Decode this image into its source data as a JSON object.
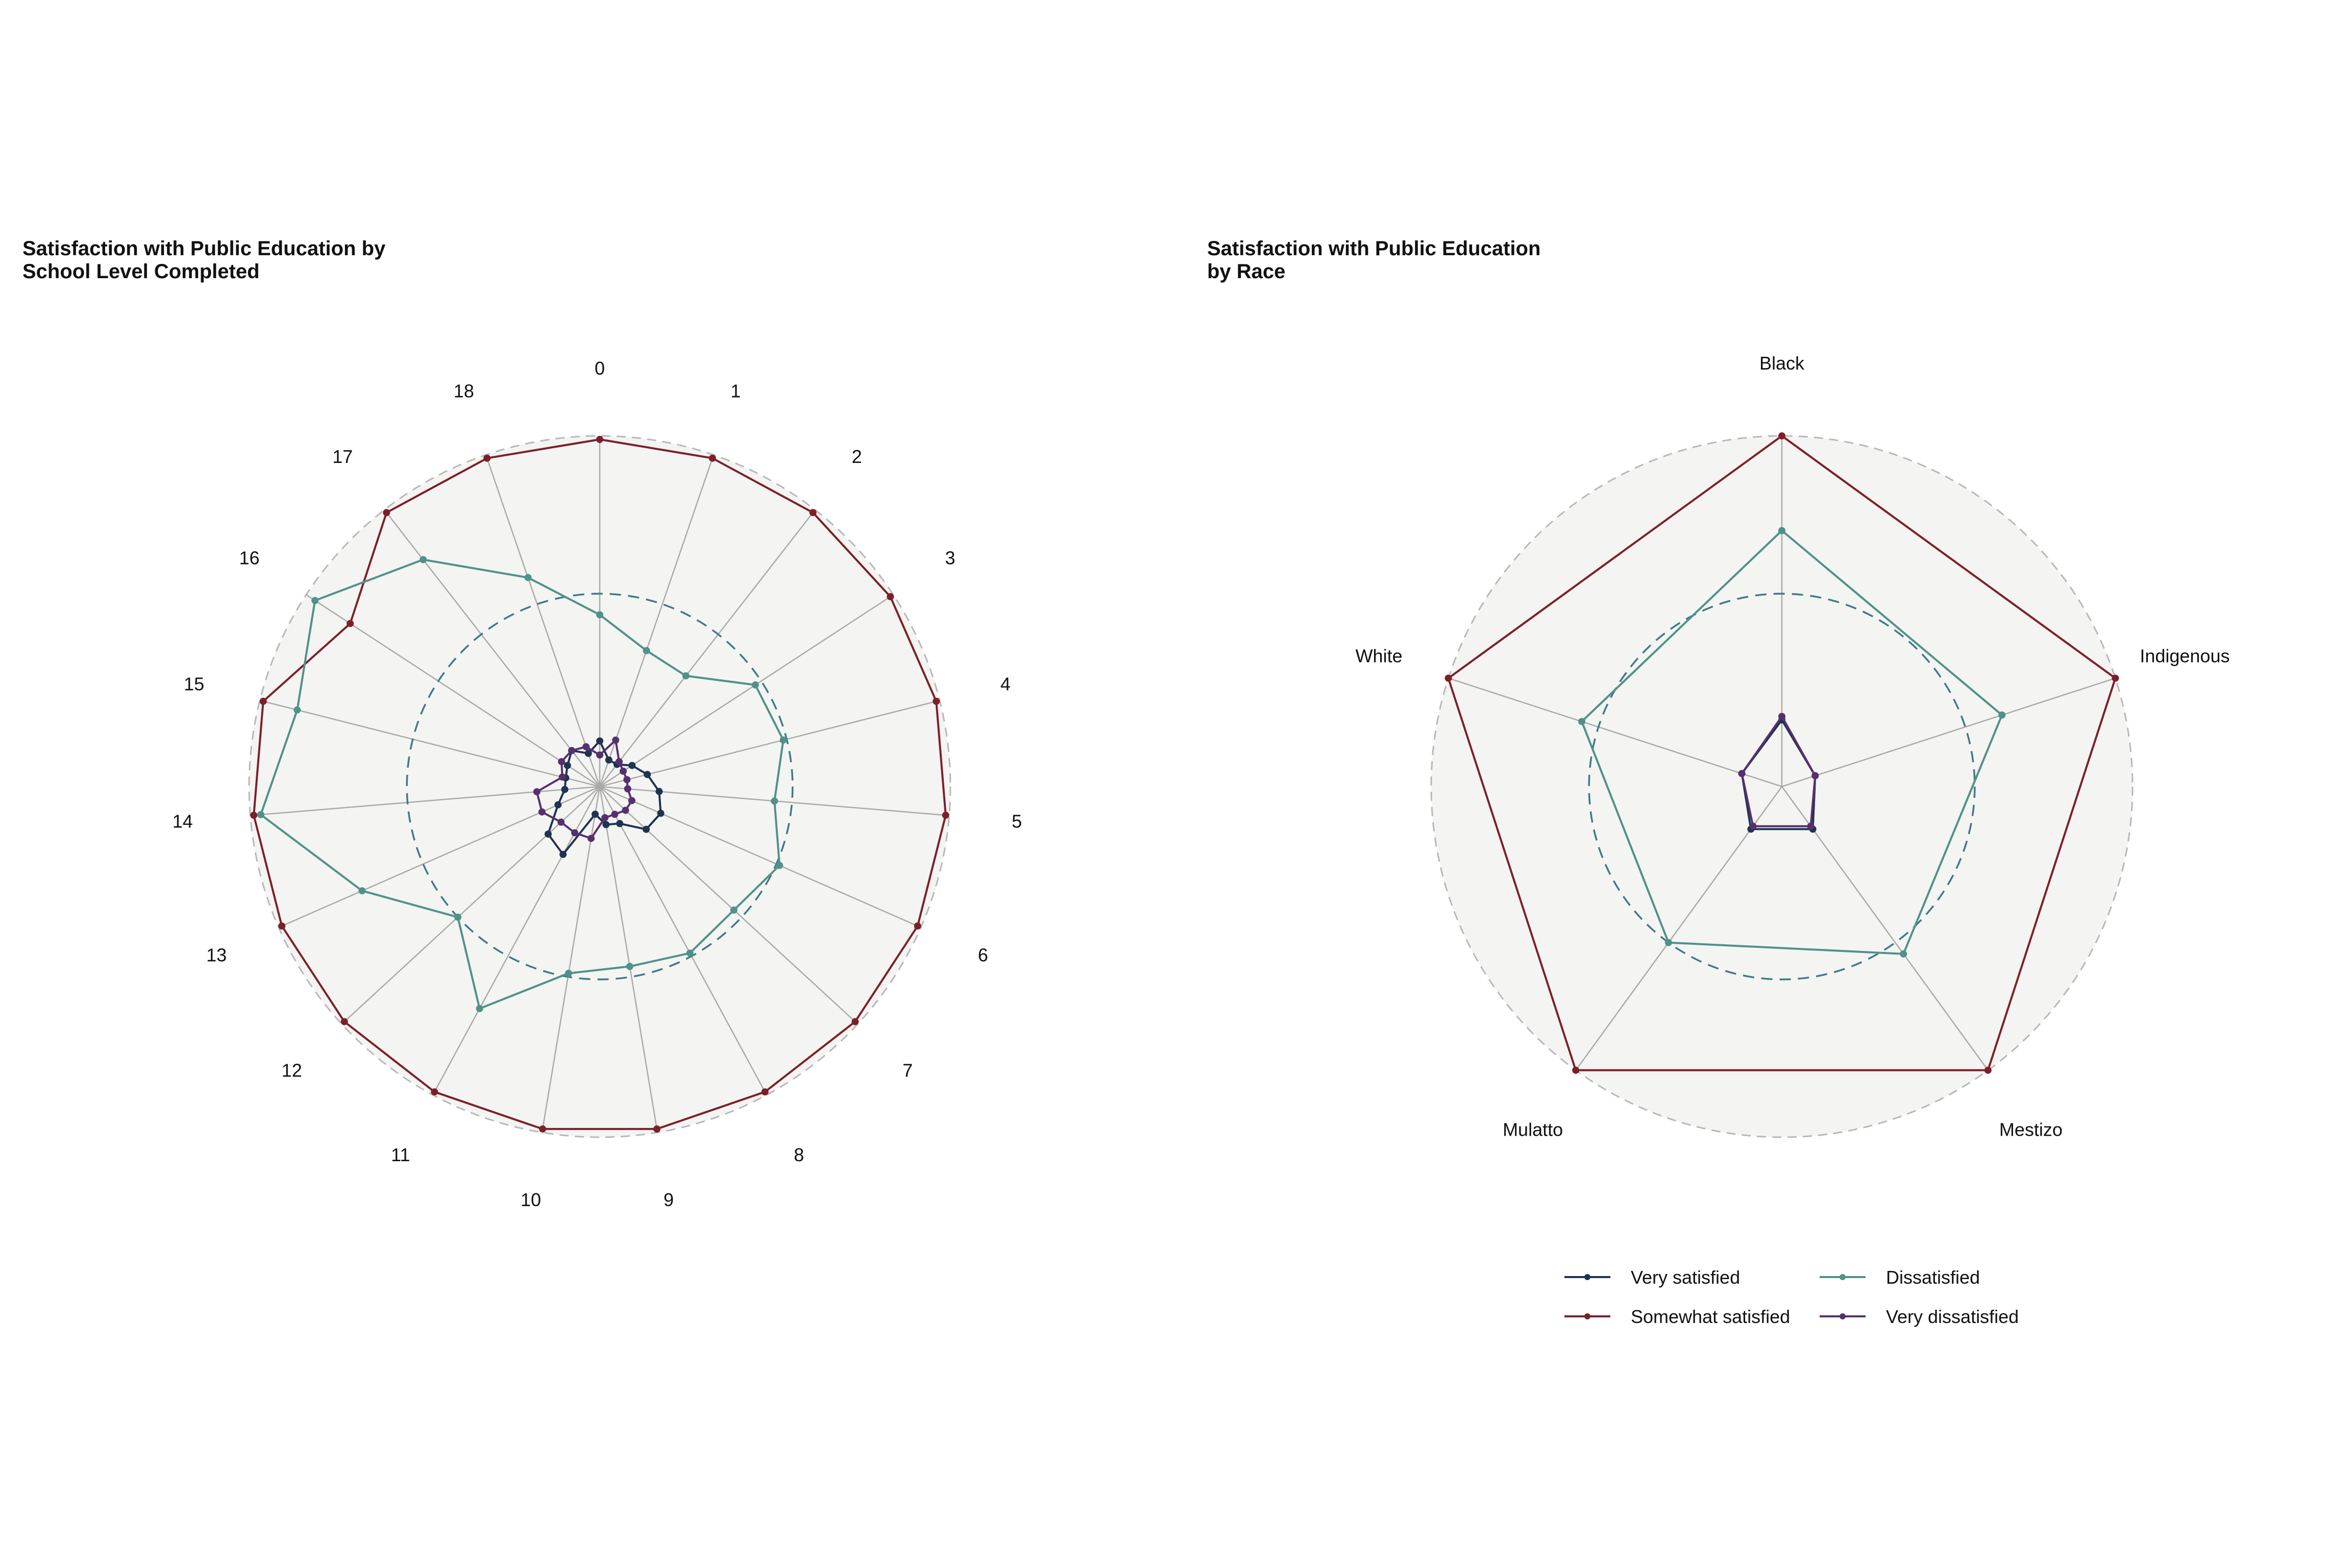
{
  "colors": {
    "very_satisfied": "#1f3352",
    "somewhat_satisfied": "#7c1f2b",
    "dissatisfied": "#4f9288",
    "very_dissatisfied": "#56306e",
    "panel_fill": "#f4f4f2",
    "spoke": "#aaaaaa",
    "outer_ring": "#b8b8b8",
    "mid_ring": "#3f7a86"
  },
  "legend": {
    "items": [
      {
        "name": "Very satisfied",
        "color": "#1f3352"
      },
      {
        "name": "Dissatisfied",
        "color": "#4f9288"
      },
      {
        "name": "Somewhat satisfied",
        "color": "#7c1f2b"
      },
      {
        "name": "Very dissatisfied",
        "color": "#56306e"
      }
    ]
  },
  "chart_data": [
    {
      "type": "radar",
      "title": [
        "Satisfaction with Public Education by",
        "School Level Completed"
      ],
      "categories": [
        "0",
        "1",
        "2",
        "3",
        "4",
        "5",
        "6",
        "7",
        "8",
        "9",
        "10",
        "11",
        "12",
        "13",
        "14",
        "15",
        "16",
        "17",
        "18"
      ],
      "rmax": 100,
      "reference_ring": 55,
      "series": [
        {
          "name": "Very satisfied",
          "color": "#1f3352",
          "values": [
            13,
            8,
            8,
            11,
            14,
            17,
            19,
            18,
            12,
            11,
            8,
            22,
            20,
            13,
            10,
            10,
            11,
            13,
            10
          ]
        },
        {
          "name": "Somewhat satisfied",
          "color": "#7c1f2b",
          "values": [
            99,
            99,
            99,
            99,
            99,
            99,
            99,
            99,
            99,
            99,
            99,
            99,
            99,
            99,
            99,
            99,
            85,
            99,
            99
          ]
        },
        {
          "name": "Dissatisfied",
          "color": "#4f9288",
          "values": [
            49,
            41,
            40,
            53,
            54,
            50,
            56,
            52,
            54,
            52,
            54,
            72,
            55,
            74,
            97,
            89,
            97,
            82,
            63
          ]
        },
        {
          "name": "Very dissatisfied",
          "color": "#56306e",
          "values": [
            9,
            14,
            9,
            8,
            8,
            8,
            10,
            10,
            9,
            9,
            15,
            15,
            15,
            18,
            18,
            11,
            13,
            13,
            12
          ]
        }
      ]
    },
    {
      "type": "radar",
      "title": [
        "Satisfaction with Public Education",
        "by Race"
      ],
      "categories": [
        "Black",
        "Indigenous",
        "Mestizo",
        "Mulatto",
        "White"
      ],
      "rmax": 100,
      "reference_ring": 55,
      "series": [
        {
          "name": "Very satisfied",
          "color": "#1f3352",
          "values": [
            19,
            10,
            15,
            15,
            12
          ]
        },
        {
          "name": "Somewhat satisfied",
          "color": "#7c1f2b",
          "values": [
            100,
            100,
            100,
            100,
            100
          ]
        },
        {
          "name": "Dissatisfied",
          "color": "#4f9288",
          "values": [
            73,
            66,
            59,
            55,
            60
          ]
        },
        {
          "name": "Very dissatisfied",
          "color": "#56306e",
          "values": [
            20,
            10,
            14,
            14,
            12
          ]
        }
      ]
    }
  ]
}
